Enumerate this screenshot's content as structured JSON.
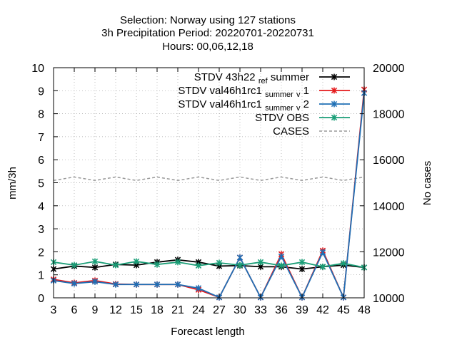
{
  "chart_data": {
    "type": "line",
    "title_lines": [
      "Selection: Norway using   127 stations",
      "3h Precipitation   Period: 20220701-20220731",
      "Hours:  00,06,12,18"
    ],
    "xlabel": "Forecast length",
    "ylabel": "mm/3h",
    "y2label": "No cases",
    "x": [
      3,
      6,
      9,
      12,
      15,
      18,
      21,
      24,
      27,
      30,
      33,
      36,
      39,
      42,
      45,
      48
    ],
    "xticks": [
      "3",
      "6",
      "9",
      "12",
      "15",
      "18",
      "21",
      "24",
      "27",
      "30",
      "33",
      "36",
      "39",
      "42",
      "45",
      "48"
    ],
    "xlim": [
      3,
      48
    ],
    "ylim": [
      0,
      10
    ],
    "yticks": [
      "0",
      "1",
      "2",
      "3",
      "4",
      "5",
      "6",
      "7",
      "8",
      "9",
      "10"
    ],
    "y2lim": [
      10000,
      20000
    ],
    "y2ticks": [
      "10000",
      "12000",
      "14000",
      "16000",
      "18000",
      "20000"
    ],
    "grid": true,
    "legend_position": "top-right",
    "series": [
      {
        "name": "STDV 43h22",
        "name_sub": "ref",
        "name_tail": "summer",
        "color": "#000000",
        "marker": "x-star",
        "axis": "y",
        "values": [
          1.25,
          1.38,
          1.32,
          1.45,
          1.42,
          1.55,
          1.65,
          1.55,
          1.38,
          1.4,
          1.35,
          1.35,
          1.25,
          1.35,
          1.42,
          1.32
        ]
      },
      {
        "name": "STDV val46h1rc1",
        "name_sub": "summer",
        "name_tail": "1",
        "name_tail_sub": "v",
        "color": "#e41a1c",
        "marker": "x-star",
        "axis": "y",
        "values": [
          0.8,
          0.65,
          0.75,
          0.6,
          0.58,
          0.58,
          0.58,
          0.35,
          0.02,
          1.75,
          0.02,
          1.9,
          0.02,
          2.05,
          0.02,
          9.05
        ]
      },
      {
        "name": "STDV val46h1rc1",
        "name_sub": "summer",
        "name_tail": "2",
        "name_tail_sub": "v",
        "color": "#1f6fb5",
        "marker": "x-star",
        "axis": "y",
        "values": [
          0.75,
          0.62,
          0.7,
          0.58,
          0.58,
          0.58,
          0.58,
          0.42,
          0.02,
          1.75,
          0.02,
          1.8,
          0.02,
          1.98,
          0.02,
          8.9
        ]
      },
      {
        "name": "STDV OBS",
        "color": "#1a9e77",
        "marker": "x-star",
        "axis": "y",
        "values": [
          1.55,
          1.42,
          1.58,
          1.42,
          1.58,
          1.45,
          1.55,
          1.4,
          1.52,
          1.42,
          1.55,
          1.4,
          1.55,
          1.35,
          1.5,
          1.32
        ]
      },
      {
        "name": "CASES",
        "color": "#999999",
        "marker": "none",
        "dashed": true,
        "axis": "y2",
        "values": [
          15100,
          15250,
          15100,
          15250,
          15100,
          15250,
          15100,
          15250,
          15100,
          15250,
          15100,
          15250,
          15100,
          15250,
          15100,
          15250
        ]
      }
    ]
  }
}
